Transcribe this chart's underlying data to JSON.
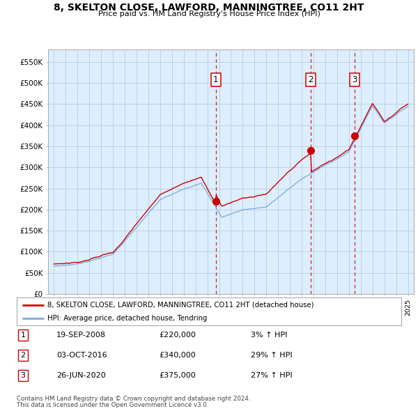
{
  "title": "8, SKELTON CLOSE, LAWFORD, MANNINGTREE, CO11 2HT",
  "subtitle": "Price paid vs. HM Land Registry's House Price Index (HPI)",
  "sale1_year": 2008.72,
  "sale1_price": 220000,
  "sale1_label": "1",
  "sale2_year": 2016.77,
  "sale2_price": 340000,
  "sale2_label": "2",
  "sale3_year": 2020.49,
  "sale3_price": 375000,
  "sale3_label": "3",
  "legend_line1": "8, SKELTON CLOSE, LAWFORD, MANNINGTREE, CO11 2HT (detached house)",
  "legend_line2": "HPI: Average price, detached house, Tendring",
  "footer1": "Contains HM Land Registry data © Crown copyright and database right 2024.",
  "footer2": "This data is licensed under the Open Government Licence v3.0.",
  "table": [
    {
      "num": "1",
      "date": "19-SEP-2008",
      "price": "£220,000",
      "change": "3% ↑ HPI"
    },
    {
      "num": "2",
      "date": "03-OCT-2016",
      "price": "£340,000",
      "change": "29% ↑ HPI"
    },
    {
      "num": "3",
      "date": "26-JUN-2020",
      "price": "£375,000",
      "change": "27% ↑ HPI"
    }
  ],
  "property_line_color": "#cc0000",
  "hpi_line_color": "#7aaadd",
  "plot_bg_color": "#ddeeff",
  "grid_color": "#bbccdd",
  "vline_color": "#cc0000",
  "yticks": [
    0,
    50000,
    100000,
    150000,
    200000,
    250000,
    300000,
    350000,
    400000,
    450000,
    500000,
    550000
  ],
  "ylim": [
    0,
    580000
  ],
  "xlim_start": 1994.5,
  "xlim_end": 2025.5
}
